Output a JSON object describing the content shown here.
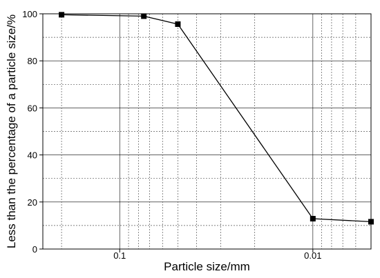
{
  "chart_data": {
    "type": "line",
    "title": "",
    "xlabel": "Particle size/mm",
    "ylabel": "Less than the percentage of a particle size/%",
    "x_scale": "log",
    "x_reversed": true,
    "xlim": [
      0.25,
      0.005
    ],
    "ylim": [
      0,
      100
    ],
    "xticks": [
      0.1,
      0.01
    ],
    "xtick_labels": [
      "0.1",
      "0.01"
    ],
    "yticks": [
      0,
      20,
      40,
      60,
      80,
      100
    ],
    "ytick_labels": [
      "0",
      "20",
      "40",
      "60",
      "80",
      "100"
    ],
    "grid": true,
    "series": [
      {
        "marker": "square",
        "color": "#000000",
        "x": [
          0.2,
          0.075,
          0.05,
          0.01,
          0.005
        ],
        "y": [
          99.6,
          99.0,
          95.6,
          12.9,
          11.6
        ]
      }
    ]
  }
}
